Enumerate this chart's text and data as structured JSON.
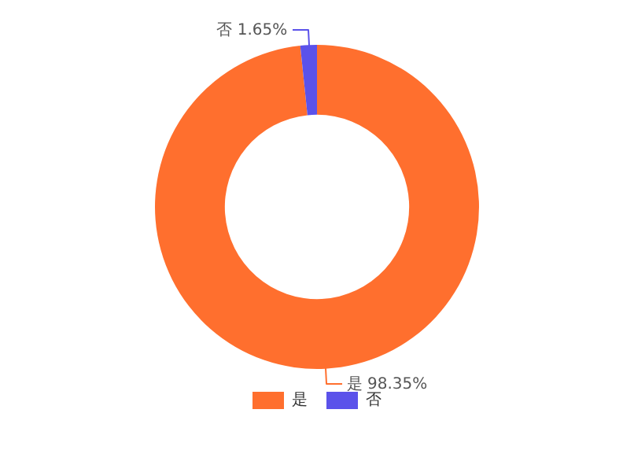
{
  "chart_data": {
    "type": "donut",
    "categories": [
      "是",
      "否"
    ],
    "values": [
      98.35,
      1.65
    ],
    "colors": [
      "#ff6f2e",
      "#5b52ea"
    ],
    "value_labels": [
      "98.35%",
      "1.65%"
    ],
    "legend": "bottom"
  }
}
